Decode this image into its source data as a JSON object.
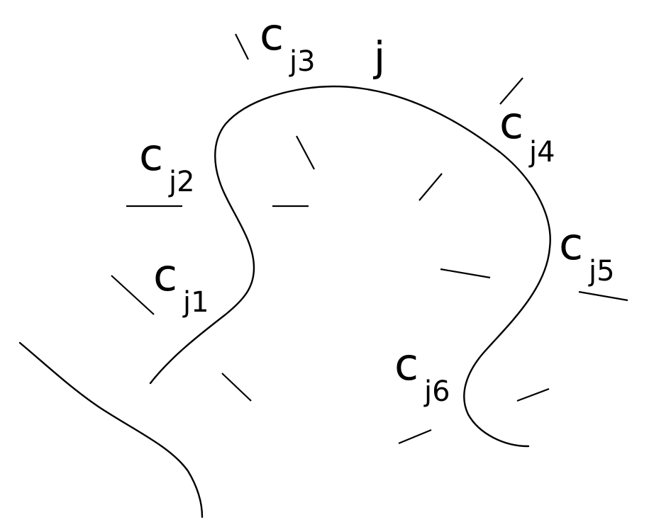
{
  "diagram": {
    "curve_label": "j",
    "labels": [
      {
        "main": "c",
        "sub": "j1"
      },
      {
        "main": "c",
        "sub": "j2"
      },
      {
        "main": "c",
        "sub": "j3"
      },
      {
        "main": "c",
        "sub": "j4"
      },
      {
        "main": "c",
        "sub": "j5"
      },
      {
        "main": "c",
        "sub": "j6"
      }
    ]
  }
}
